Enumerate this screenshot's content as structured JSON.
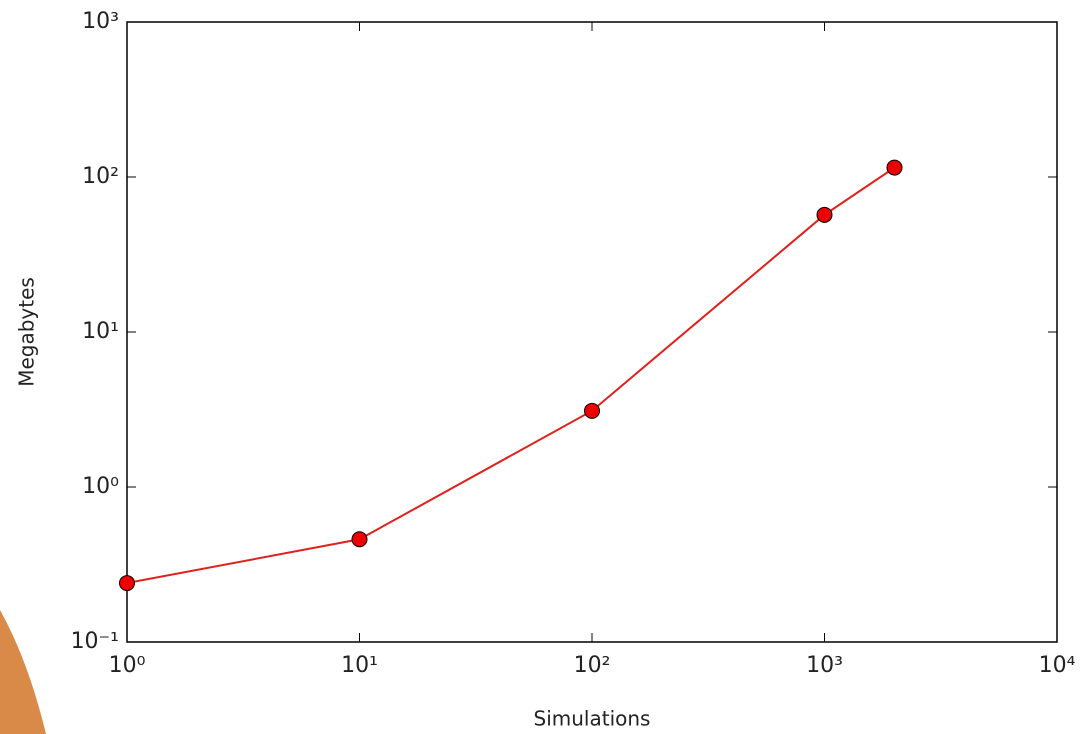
{
  "chart_data": {
    "type": "line",
    "x_label": "Simulations",
    "y_label": "Megabytes",
    "x": [
      1,
      10,
      100,
      1000,
      2000
    ],
    "series": [
      {
        "name": "Megabytes",
        "color": "#e0201c",
        "marker_color": "#ee0000",
        "values": [
          0.24,
          0.46,
          3.1,
          57,
          115
        ]
      }
    ],
    "xscale": "log",
    "yscale": "log",
    "xlim": [
      1,
      10000
    ],
    "ylim": [
      0.1,
      1000
    ],
    "xticks": [
      {
        "value": 1,
        "label": "10⁰"
      },
      {
        "value": 10,
        "label": "10¹"
      },
      {
        "value": 100,
        "label": "10²"
      },
      {
        "value": 1000,
        "label": "10³"
      },
      {
        "value": 10000,
        "label": "10⁴"
      }
    ],
    "yticks": [
      {
        "value": 0.1,
        "label": "10⁻¹"
      },
      {
        "value": 1,
        "label": "10⁰"
      },
      {
        "value": 10,
        "label": "10¹"
      },
      {
        "value": 100,
        "label": "10²"
      },
      {
        "value": 1000,
        "label": "10³"
      }
    ],
    "grid": false
  }
}
